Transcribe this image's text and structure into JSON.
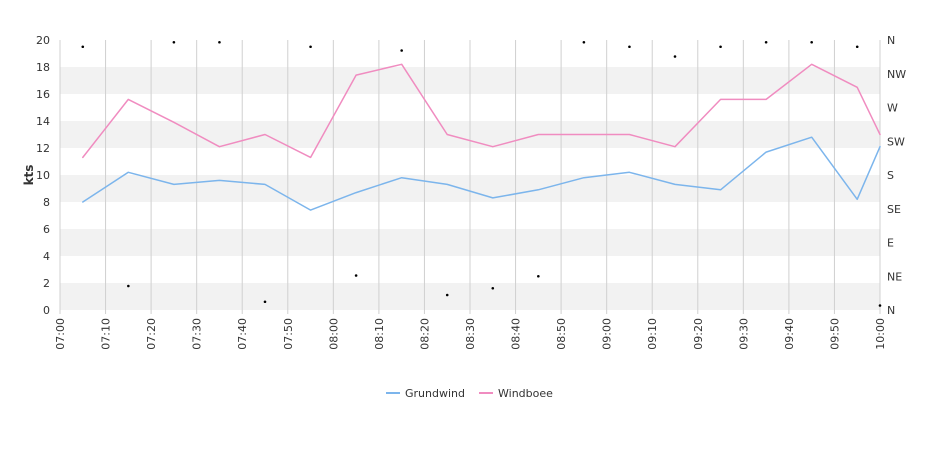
{
  "chart_data": {
    "type": "line",
    "ylabel": "kts",
    "ylim": [
      0,
      20
    ],
    "y_ticks": [
      "0",
      "2",
      "4",
      "6",
      "8",
      "10",
      "12",
      "14",
      "16",
      "18",
      "20"
    ],
    "x_ticks": [
      "07:00",
      "07:10",
      "07:20",
      "07:30",
      "07:40",
      "07:50",
      "08:00",
      "08:10",
      "08:20",
      "08:30",
      "08:40",
      "08:50",
      "09:00",
      "09:10",
      "09:20",
      "09:30",
      "09:40",
      "09:50",
      "10:00"
    ],
    "x_range": [
      "07:00",
      "10:00"
    ],
    "x": [
      "07:05",
      "07:15",
      "07:25",
      "07:35",
      "07:45",
      "07:55",
      "08:05",
      "08:15",
      "08:25",
      "08:35",
      "08:45",
      "08:55",
      "09:05",
      "09:15",
      "09:25",
      "09:35",
      "09:45",
      "09:55",
      "10:00"
    ],
    "series": [
      {
        "name": "Grundwind",
        "color": "#7cb5ec",
        "values": [
          8.0,
          10.2,
          9.3,
          9.6,
          9.3,
          7.4,
          8.7,
          9.8,
          9.3,
          8.3,
          8.9,
          9.8,
          10.2,
          9.3,
          8.9,
          11.7,
          12.8,
          8.2,
          12.1
        ]
      },
      {
        "name": "Windboee",
        "color": "#f08cc0",
        "values": [
          11.3,
          15.6,
          13.9,
          12.1,
          13.0,
          11.3,
          17.4,
          18.2,
          13.0,
          12.1,
          13.0,
          13.0,
          13.0,
          12.1,
          15.6,
          15.6,
          18.2,
          16.5,
          13.0
        ]
      }
    ],
    "direction_axis": {
      "ticks": [
        "N",
        "NE",
        "E",
        "SE",
        "S",
        "SW",
        "W",
        "NW",
        "N"
      ],
      "range_degrees": [
        0,
        360
      ]
    },
    "direction_points": {
      "x": [
        "07:05",
        "07:15",
        "07:25",
        "07:35",
        "07:45",
        "07:55",
        "08:05",
        "08:15",
        "08:25",
        "08:35",
        "08:45",
        "08:55",
        "09:05",
        "09:15",
        "09:25",
        "09:35",
        "09:45",
        "09:55",
        "10:00"
      ],
      "degrees": [
        351,
        32,
        357,
        357,
        11,
        351,
        46,
        346,
        20,
        29,
        45,
        357,
        351,
        338,
        351,
        357,
        357,
        351,
        6
      ]
    },
    "grid": true,
    "legend_position": "bottom-center",
    "colors": {
      "band": "#f2f2f2",
      "vertical_grid": "#d0d0d0",
      "axis_line": "#333333",
      "direction_dot": "#000000"
    }
  }
}
